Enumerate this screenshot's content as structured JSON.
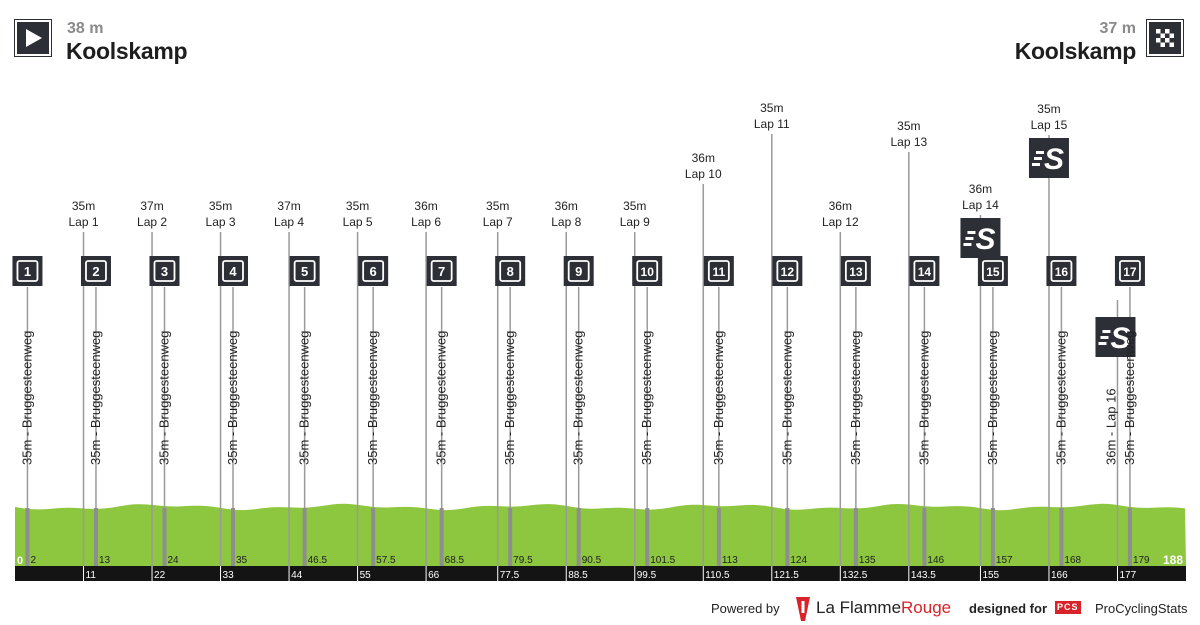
{
  "start": {
    "altitude": "38 m",
    "name": "Koolskamp",
    "icon": "play-start-icon"
  },
  "finish": {
    "altitude": "37 m",
    "name": "Koolskamp",
    "icon": "checkered-flag-icon"
  },
  "profile": {
    "total_distance": 188,
    "start_label": "0",
    "end_label": "188",
    "fill_color": "#8dc63f",
    "axis_color": "#141414"
  },
  "laps": [
    {
      "km": 11,
      "alt": "35m",
      "label": "Lap 1"
    },
    {
      "km": 22,
      "alt": "37m",
      "label": "Lap 2"
    },
    {
      "km": 33,
      "alt": "35m",
      "label": "Lap 3"
    },
    {
      "km": 44,
      "alt": "37m",
      "label": "Lap 4"
    },
    {
      "km": 55,
      "alt": "35m",
      "label": "Lap 5"
    },
    {
      "km": 66,
      "alt": "36m",
      "label": "Lap 6"
    },
    {
      "km": 77.5,
      "alt": "35m",
      "label": "Lap 7"
    },
    {
      "km": 88.5,
      "alt": "36m",
      "label": "Lap 8"
    },
    {
      "km": 99.5,
      "alt": "35m",
      "label": "Lap 9"
    },
    {
      "km": 110.5,
      "alt": "36m",
      "label": "Lap 10"
    },
    {
      "km": 121.5,
      "alt": "35m",
      "label": "Lap 11"
    },
    {
      "km": 132.5,
      "alt": "36m",
      "label": "Lap 12"
    },
    {
      "km": 143.5,
      "alt": "35m",
      "label": "Lap 13"
    },
    {
      "km": 155,
      "alt": "36m",
      "label": "Lap 14",
      "sprint": true
    },
    {
      "km": 166,
      "alt": "35m",
      "label": "Lap 15",
      "sprint": true
    },
    {
      "km": 177,
      "alt": "36m",
      "label": "Lap 16",
      "sprint": true
    }
  ],
  "lap_km_labels": [
    "11",
    "22",
    "33",
    "44",
    "55",
    "66",
    "77.5",
    "88.5",
    "99.5",
    "110.5",
    "121.5",
    "132.5",
    "143.5",
    "155",
    "166",
    "177"
  ],
  "waypoints": [
    {
      "num": "1",
      "km": 2,
      "km_label": "2",
      "label": "35m - Bruggesteenweg"
    },
    {
      "num": "2",
      "km": 13,
      "km_label": "13",
      "label": "35m - Bruggesteenweg"
    },
    {
      "num": "3",
      "km": 24,
      "km_label": "24",
      "label": "35m - Bruggesteenweg"
    },
    {
      "num": "4",
      "km": 35,
      "km_label": "35",
      "label": "35m - Bruggesteenweg"
    },
    {
      "num": "5",
      "km": 46.5,
      "km_label": "46.5",
      "label": "35m - Bruggesteenweg"
    },
    {
      "num": "6",
      "km": 57.5,
      "km_label": "57.5",
      "label": "35m - Bruggesteenweg"
    },
    {
      "num": "7",
      "km": 68.5,
      "km_label": "68.5",
      "label": "35m - Bruggesteenweg"
    },
    {
      "num": "8",
      "km": 79.5,
      "km_label": "79.5",
      "label": "35m - Bruggesteenweg"
    },
    {
      "num": "9",
      "km": 90.5,
      "km_label": "90.5",
      "label": "35m - Bruggesteenweg"
    },
    {
      "num": "10",
      "km": 101.5,
      "km_label": "101.5",
      "label": "35m - Bruggesteenweg"
    },
    {
      "num": "11",
      "km": 113,
      "km_label": "113",
      "label": "35m - Bruggesteenweg"
    },
    {
      "num": "12",
      "km": 124,
      "km_label": "124",
      "label": "35m - Bruggesteenweg"
    },
    {
      "num": "13",
      "km": 135,
      "km_label": "135",
      "label": "35m - Bruggesteenweg"
    },
    {
      "num": "14",
      "km": 146,
      "km_label": "146",
      "label": "35m - Bruggesteenweg"
    },
    {
      "num": "15",
      "km": 157,
      "km_label": "157",
      "label": "35m - Bruggesteenweg"
    },
    {
      "num": "16",
      "km": 168,
      "km_label": "168",
      "label": "35m - Bruggesteenweg"
    },
    {
      "num": "17",
      "km": 179,
      "km_label": "179",
      "label": "35m - Bruggesteenweg"
    }
  ],
  "sprint_icon_text": "S",
  "footer": {
    "powered_by": "Powered by",
    "flamme_a": "La Flamme",
    "flamme_b": "Rouge",
    "designed_for": "designed for",
    "pcs_badge": "PCS",
    "pcs_name": "ProCyclingStats",
    "flamme_color": "#d8232a"
  }
}
